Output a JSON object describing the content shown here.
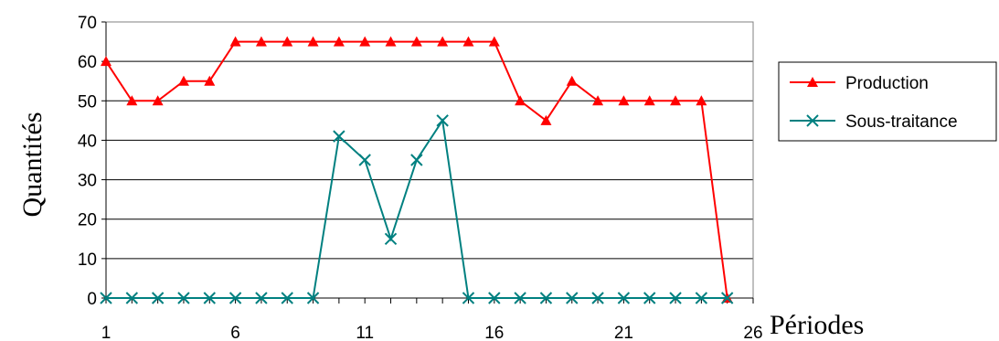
{
  "chart_data": {
    "type": "line",
    "xlabel": "Périodes",
    "ylabel": "Quantités",
    "xlim": [
      1,
      26
    ],
    "ylim": [
      0,
      70
    ],
    "x_ticks": [
      "1",
      "6",
      "11",
      "16",
      "21",
      "26"
    ],
    "y_ticks": [
      "0",
      "10",
      "20",
      "30",
      "40",
      "50",
      "60",
      "70"
    ],
    "grid": "horizontal",
    "legend_position": "right",
    "x": [
      1,
      2,
      3,
      4,
      5,
      6,
      7,
      8,
      9,
      10,
      11,
      12,
      13,
      14,
      15,
      16,
      17,
      18,
      19,
      20,
      21,
      22,
      23,
      24,
      25
    ],
    "series": [
      {
        "name": "Production",
        "color": "#ff0000",
        "marker": "triangle",
        "values": [
          60,
          50,
          50,
          55,
          55,
          65,
          65,
          65,
          65,
          65,
          65,
          65,
          65,
          65,
          65,
          65,
          50,
          45,
          55,
          50,
          50,
          50,
          50,
          50,
          0
        ]
      },
      {
        "name": "Sous-traitance",
        "color": "#008080",
        "marker": "x",
        "values": [
          0,
          0,
          0,
          0,
          0,
          0,
          0,
          0,
          0,
          41,
          35,
          15,
          35,
          45,
          0,
          0,
          0,
          0,
          0,
          0,
          0,
          0,
          0,
          0,
          0
        ]
      }
    ]
  }
}
